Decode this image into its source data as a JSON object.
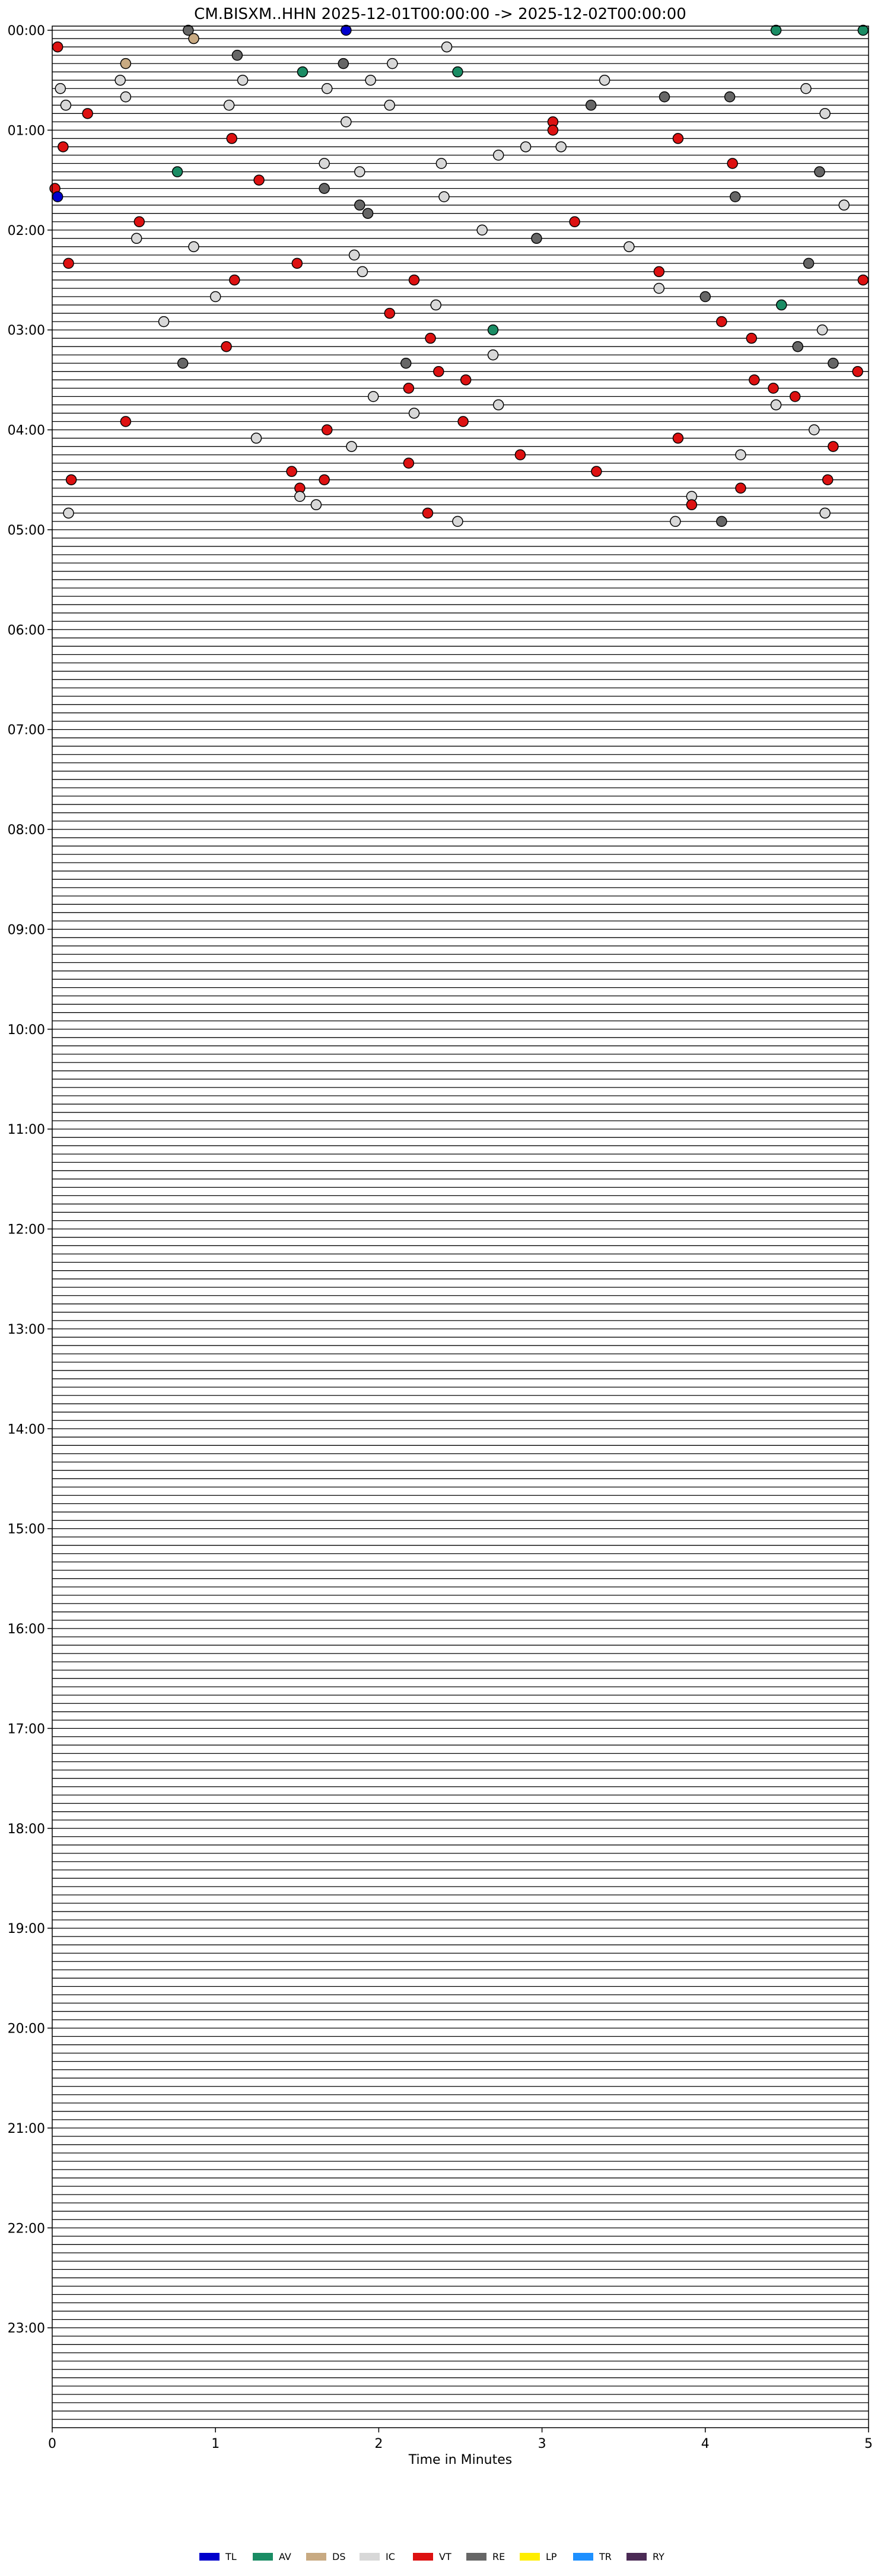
{
  "chart_data": {
    "type": "scatter",
    "title": "CM.BISXM..HHN  2025-12-01T00:00:00 -> 2025-12-02T00:00:00",
    "xlabel": "Time in Minutes",
    "xlim": [
      0,
      5
    ],
    "x_ticks": [
      "0",
      "1",
      "2",
      "3",
      "4",
      "5"
    ],
    "y_ticks": [
      "00:00",
      "01:00",
      "02:00",
      "03:00",
      "04:00",
      "05:00",
      "06:00",
      "07:00",
      "08:00",
      "09:00",
      "10:00",
      "11:00",
      "12:00",
      "13:00",
      "14:00",
      "15:00",
      "16:00",
      "17:00",
      "18:00",
      "19:00",
      "20:00",
      "21:00",
      "22:00",
      "23:00"
    ],
    "traces_per_hour": 12,
    "trace_length_minutes": 5,
    "legend_position": "bottom-center",
    "legend": [
      {
        "code": "TL",
        "color": "#0000cc"
      },
      {
        "code": "AV",
        "color": "#1a8c64"
      },
      {
        "code": "DS",
        "color": "#c8aa82"
      },
      {
        "code": "IC",
        "color": "#d8d8d8"
      },
      {
        "code": "VT",
        "color": "#dd1111"
      },
      {
        "code": "RE",
        "color": "#666666"
      },
      {
        "code": "LP",
        "color": "#ffee00"
      },
      {
        "code": "TR",
        "color": "#1e90ff"
      },
      {
        "code": "RY",
        "color": "#4b2a55"
      }
    ],
    "events_time_format": "H:MM:SS",
    "events": [
      [
        "0:00:50",
        "RE"
      ],
      [
        "0:01:48",
        "TL"
      ],
      [
        "0:04:26",
        "AV"
      ],
      [
        "0:04:58",
        "AV"
      ],
      [
        "0:05:52",
        "DS"
      ],
      [
        "0:10:02",
        "VT"
      ],
      [
        "0:12:25",
        "IC"
      ],
      [
        "0:16:08",
        "RE"
      ],
      [
        "0:20:27",
        "DS"
      ],
      [
        "0:21:47",
        "RE"
      ],
      [
        "0:22:05",
        "IC"
      ],
      [
        "0:26:32",
        "AV"
      ],
      [
        "0:27:29",
        "AV"
      ],
      [
        "0:30:25",
        "IC"
      ],
      [
        "0:31:10",
        "IC"
      ],
      [
        "0:31:57",
        "IC"
      ],
      [
        "0:33:23",
        "IC"
      ],
      [
        "0:35:03",
        "IC"
      ],
      [
        "0:36:41",
        "IC"
      ],
      [
        "0:39:37",
        "IC"
      ],
      [
        "0:40:27",
        "IC"
      ],
      [
        "0:43:45",
        "RE"
      ],
      [
        "0:44:09",
        "RE"
      ],
      [
        "0:45:05",
        "IC"
      ],
      [
        "0:46:05",
        "IC"
      ],
      [
        "0:47:04",
        "IC"
      ],
      [
        "0:48:18",
        "RE"
      ],
      [
        "0:50:13",
        "VT"
      ],
      [
        "0:54:44",
        "IC"
      ],
      [
        "0:56:48",
        "IC"
      ],
      [
        "0:58:04",
        "VT"
      ],
      [
        "1:03:04",
        "VT"
      ],
      [
        "1:06:06",
        "VT"
      ],
      [
        "1:08:50",
        "VT"
      ],
      [
        "1:10:04",
        "VT"
      ],
      [
        "1:12:54",
        "IC"
      ],
      [
        "1:13:07",
        "IC"
      ],
      [
        "1:17:44",
        "IC"
      ],
      [
        "1:21:40",
        "IC"
      ],
      [
        "1:22:23",
        "IC"
      ],
      [
        "1:24:10",
        "VT"
      ],
      [
        "1:25:46",
        "AV"
      ],
      [
        "1:26:53",
        "IC"
      ],
      [
        "1:29:42",
        "RE"
      ],
      [
        "1:31:16",
        "VT"
      ],
      [
        "1:35:01",
        "VT"
      ],
      [
        "1:36:40",
        "RE"
      ],
      [
        "1:40:02",
        "TL"
      ],
      [
        "1:42:24",
        "IC"
      ],
      [
        "1:44:11",
        "RE"
      ],
      [
        "1:46:53",
        "RE"
      ],
      [
        "1:49:51",
        "IC"
      ],
      [
        "1:51:56",
        "RE"
      ],
      [
        "1:55:32",
        "VT"
      ],
      [
        "1:58:12",
        "VT"
      ],
      [
        "2:02:38",
        "IC"
      ],
      [
        "2:05:31",
        "IC"
      ],
      [
        "2:07:58",
        "RE"
      ],
      [
        "2:10:52",
        "IC"
      ],
      [
        "2:13:32",
        "IC"
      ],
      [
        "2:16:51",
        "IC"
      ],
      [
        "2:20:06",
        "VT"
      ],
      [
        "2:21:30",
        "VT"
      ],
      [
        "2:24:38",
        "RE"
      ],
      [
        "2:26:54",
        "IC"
      ],
      [
        "2:28:43",
        "VT"
      ],
      [
        "2:31:07",
        "VT"
      ],
      [
        "2:32:13",
        "VT"
      ],
      [
        "2:34:58",
        "VT"
      ],
      [
        "2:38:43",
        "IC"
      ],
      [
        "2:41:00",
        "IC"
      ],
      [
        "2:44:00",
        "RE"
      ],
      [
        "2:47:21",
        "IC"
      ],
      [
        "2:49:28",
        "AV"
      ],
      [
        "2:52:04",
        "VT"
      ],
      [
        "2:55:41",
        "IC"
      ],
      [
        "2:59:06",
        "VT"
      ],
      [
        "3:02:42",
        "AV"
      ],
      [
        "3:04:43",
        "IC"
      ],
      [
        "3:07:19",
        "VT"
      ],
      [
        "3:09:17",
        "VT"
      ],
      [
        "3:11:04",
        "VT"
      ],
      [
        "3:14:34",
        "RE"
      ],
      [
        "3:17:42",
        "IC"
      ],
      [
        "3:20:48",
        "RE"
      ],
      [
        "3:22:10",
        "RE"
      ],
      [
        "3:24:47",
        "RE"
      ],
      [
        "3:27:22",
        "VT"
      ],
      [
        "3:29:56",
        "VT"
      ],
      [
        "3:32:32",
        "VT"
      ],
      [
        "3:34:18",
        "VT"
      ],
      [
        "3:37:11",
        "VT"
      ],
      [
        "3:39:25",
        "VT"
      ],
      [
        "3:41:58",
        "IC"
      ],
      [
        "3:44:33",
        "VT"
      ],
      [
        "3:47:44",
        "IC"
      ],
      [
        "3:49:26",
        "IC"
      ],
      [
        "3:52:13",
        "IC"
      ],
      [
        "3:55:27",
        "VT"
      ],
      [
        "3:57:31",
        "VT"
      ],
      [
        "4:01:41",
        "VT"
      ],
      [
        "4:04:40",
        "IC"
      ],
      [
        "4:06:15",
        "IC"
      ],
      [
        "4:08:50",
        "VT"
      ],
      [
        "4:11:50",
        "IC"
      ],
      [
        "4:14:47",
        "VT"
      ],
      [
        "4:17:52",
        "VT"
      ],
      [
        "4:19:13",
        "IC"
      ],
      [
        "4:22:11",
        "VT"
      ],
      [
        "4:26:28",
        "VT"
      ],
      [
        "4:28:20",
        "VT"
      ],
      [
        "4:30:07",
        "VT"
      ],
      [
        "4:31:40",
        "VT"
      ],
      [
        "4:34:45",
        "VT"
      ],
      [
        "4:36:31",
        "VT"
      ],
      [
        "4:39:13",
        "VT"
      ],
      [
        "4:41:31",
        "IC"
      ],
      [
        "4:43:55",
        "IC"
      ],
      [
        "4:46:37",
        "IC"
      ],
      [
        "4:48:55",
        "VT"
      ],
      [
        "4:50:06",
        "IC"
      ],
      [
        "4:52:18",
        "VT"
      ],
      [
        "4:54:44",
        "IC"
      ],
      [
        "4:57:29",
        "IC"
      ],
      [
        "4:58:49",
        "IC"
      ],
      [
        "4:59:06",
        "RE"
      ]
    ]
  }
}
